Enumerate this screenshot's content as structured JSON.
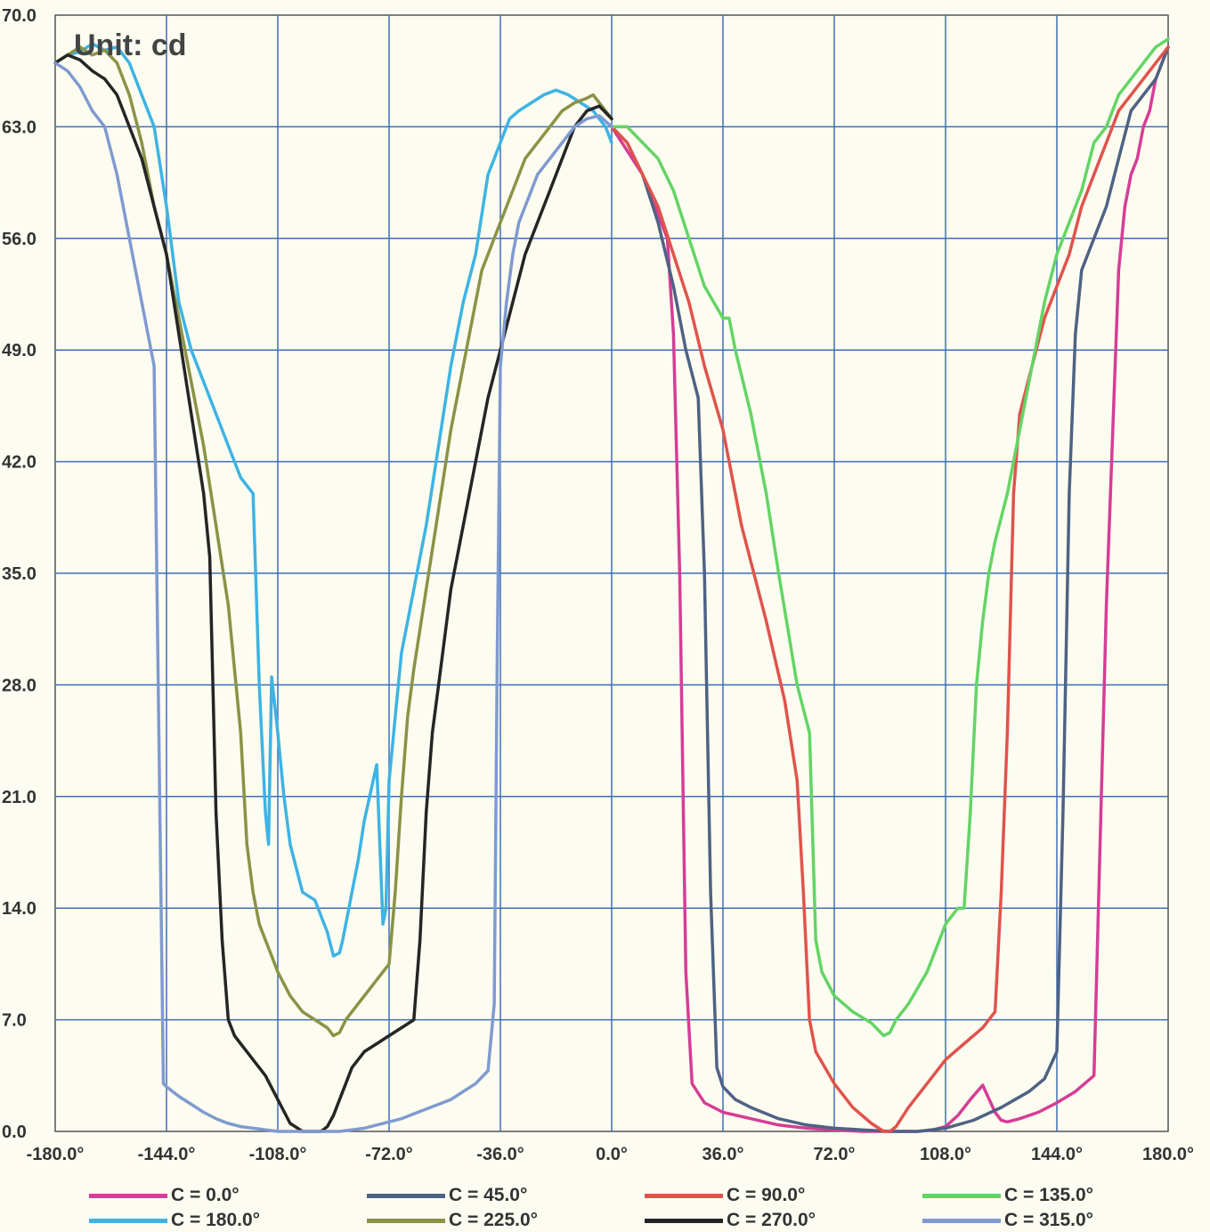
{
  "chart_data": {
    "type": "line",
    "unit_label": "Unit: cd",
    "xlim": [
      -180,
      180
    ],
    "ylim": [
      0,
      70
    ],
    "x_ticks": [
      "-180.0°",
      "-144.0°",
      "-108.0°",
      "-72.0°",
      "-36.0°",
      "0.0°",
      "36.0°",
      "72.0°",
      "108.0°",
      "144.0°",
      "180.0°"
    ],
    "y_ticks": [
      "0.0",
      "7.0",
      "14.0",
      "21.0",
      "28.0",
      "35.0",
      "42.0",
      "49.0",
      "56.0",
      "63.0",
      "70.0"
    ],
    "grid": true,
    "legend_position": "bottom",
    "series": [
      {
        "name": "C = 0.0°",
        "color": "#d63d96",
        "x": [
          0,
          10,
          18,
          20,
          22,
          24,
          26,
          30,
          36,
          45,
          54,
          63,
          72,
          81,
          90,
          99,
          104,
          108,
          112,
          116,
          120,
          124,
          126,
          128,
          130,
          132,
          138,
          144,
          150,
          156,
          160,
          164,
          166,
          168,
          170,
          172,
          174,
          176,
          178,
          180
        ],
        "y": [
          63,
          60,
          56,
          50,
          35,
          10,
          3,
          1.8,
          1.2,
          0.8,
          0.4,
          0.2,
          0.1,
          0,
          0,
          0,
          0.1,
          0.3,
          1,
          2,
          2.9,
          1.2,
          0.7,
          0.6,
          0.7,
          0.8,
          1.2,
          1.8,
          2.5,
          3.5,
          33,
          54,
          58,
          60,
          61,
          63,
          64,
          66,
          67,
          68
        ]
      },
      {
        "name": "C = 45.0°",
        "color": "#4e6284",
        "x": [
          0,
          5,
          10,
          15,
          20,
          24,
          28,
          30,
          32,
          34,
          36,
          40,
          45,
          54,
          63,
          72,
          81,
          90,
          99,
          108,
          117,
          126,
          135,
          140,
          144,
          146,
          148,
          150,
          152,
          156,
          160,
          164,
          168,
          172,
          176,
          180
        ],
        "y": [
          63,
          62,
          60,
          57,
          53,
          49,
          46,
          35,
          15,
          4,
          2.8,
          2,
          1.5,
          0.8,
          0.4,
          0.2,
          0.1,
          0,
          0,
          0.2,
          0.7,
          1.5,
          2.5,
          3.3,
          5,
          20,
          40,
          50,
          54,
          56,
          58,
          61,
          64,
          65,
          66,
          68
        ]
      },
      {
        "name": "C = 90.0°",
        "color": "#e0534d",
        "x": [
          0,
          5,
          10,
          15,
          20,
          25,
          30,
          36,
          42,
          50,
          56,
          60,
          62,
          64,
          66,
          72,
          78,
          84,
          88,
          90,
          92,
          96,
          102,
          108,
          114,
          120,
          124,
          126,
          128,
          130,
          132,
          136,
          140,
          144,
          148,
          152,
          156,
          160,
          164,
          168,
          172,
          176,
          180
        ],
        "y": [
          63,
          62,
          60,
          58,
          55,
          52,
          48,
          44,
          38,
          32,
          27,
          22,
          15,
          7,
          5,
          3,
          1.5,
          0.5,
          0,
          0,
          0.3,
          1.5,
          3,
          4.5,
          5.5,
          6.5,
          7.5,
          15,
          25,
          40,
          45,
          48,
          51,
          53,
          55,
          58,
          60,
          62,
          64,
          65,
          66,
          67,
          68
        ]
      },
      {
        "name": "C = 135.0°",
        "color": "#64d466",
        "x": [
          0,
          5,
          10,
          15,
          20,
          25,
          30,
          36,
          38,
          40,
          45,
          50,
          54,
          60,
          64,
          66,
          68,
          72,
          78,
          84,
          88,
          90,
          92,
          96,
          102,
          106,
          108,
          112,
          114,
          116,
          118,
          120,
          122,
          124,
          128,
          132,
          136,
          140,
          144,
          148,
          152,
          156,
          160,
          164,
          168,
          172,
          176,
          180
        ],
        "y": [
          63,
          63,
          62,
          61,
          59,
          56,
          53,
          51,
          51,
          49,
          45,
          40,
          35,
          28,
          25,
          12,
          10,
          8.5,
          7.5,
          6.8,
          6,
          6.2,
          7,
          8,
          10,
          12,
          13,
          14,
          14,
          20,
          28,
          32,
          35,
          37,
          40,
          44,
          48,
          52,
          55,
          57,
          59,
          62,
          63,
          65,
          66,
          67,
          68,
          68.5
        ]
      },
      {
        "name": "C = 180.0°",
        "color": "#3eb3e4",
        "x": [
          -180,
          -176,
          -172,
          -168,
          -164,
          -160,
          -156,
          -152,
          -148,
          -144,
          -140,
          -136,
          -132,
          -128,
          -124,
          -120,
          -116,
          -114,
          -112,
          -111,
          -110,
          -108,
          -106,
          -104,
          -100,
          -96,
          -92,
          -90,
          -88,
          -87,
          -86,
          -84,
          -82,
          -80,
          -76,
          -74,
          -73,
          -72,
          -71,
          -70,
          -68,
          -64,
          -60,
          -56,
          -52,
          -48,
          -44,
          -40,
          -38,
          -36,
          -33,
          -30,
          -26,
          -22,
          -18,
          -14,
          -10,
          -6,
          -4,
          -2,
          0
        ],
        "y": [
          67,
          67.5,
          67.7,
          68.2,
          67.8,
          68,
          67,
          65,
          63,
          58,
          52,
          49,
          47,
          45,
          43,
          41,
          40,
          28,
          20,
          18,
          28.5,
          25,
          21,
          18,
          15,
          14.5,
          12.5,
          11,
          11.2,
          12,
          13,
          15,
          17,
          19.5,
          23,
          13,
          14,
          22,
          24,
          26,
          30,
          34,
          38,
          43,
          48,
          52,
          55,
          60,
          61,
          62,
          63.5,
          64,
          64.5,
          65,
          65.3,
          65,
          64.5,
          64,
          63.5,
          63,
          62
        ]
      },
      {
        "name": "C = 225.0°",
        "color": "#8a9346",
        "x": [
          -180,
          -176,
          -172,
          -168,
          -164,
          -160,
          -156,
          -152,
          -148,
          -144,
          -140,
          -136,
          -132,
          -128,
          -124,
          -120,
          -118,
          -116,
          -114,
          -112,
          -110,
          -108,
          -104,
          -100,
          -96,
          -92,
          -90,
          -88,
          -86,
          -84,
          -80,
          -76,
          -72,
          -70,
          -68,
          -66,
          -64,
          -60,
          -56,
          -52,
          -48,
          -44,
          -42,
          -40,
          -36,
          -32,
          -28,
          -24,
          -20,
          -16,
          -12,
          -8,
          -6,
          -4,
          -2,
          0
        ],
        "y": [
          67,
          67.5,
          68,
          67.5,
          67.8,
          67,
          65,
          62,
          58,
          55,
          51,
          47,
          43,
          38,
          33,
          25,
          18,
          15,
          13,
          12,
          11,
          10,
          8.5,
          7.5,
          7,
          6.5,
          6,
          6.2,
          7,
          7.5,
          8.5,
          9.5,
          10.5,
          15,
          21,
          26,
          29,
          34,
          39,
          44,
          48,
          52,
          54,
          55,
          57,
          59,
          61,
          62,
          63,
          64,
          64.5,
          64.8,
          65,
          64.5,
          64,
          63.5
        ]
      },
      {
        "name": "C = 270.0°",
        "color": "#252525",
        "x": [
          -180,
          -176,
          -172,
          -168,
          -164,
          -160,
          -156,
          -152,
          -148,
          -144,
          -140,
          -136,
          -132,
          -130,
          -128,
          -126,
          -124,
          -122,
          -120,
          -118,
          -116,
          -112,
          -108,
          -104,
          -100,
          -96,
          -94,
          -92,
          -90,
          -88,
          -86,
          -84,
          -80,
          -76,
          -72,
          -68,
          -64,
          -62,
          -60,
          -58,
          -56,
          -54,
          -52,
          -48,
          -44,
          -40,
          -36,
          -32,
          -28,
          -24,
          -20,
          -16,
          -12,
          -8,
          -4,
          0
        ],
        "y": [
          67,
          67.5,
          67.2,
          66.5,
          66,
          65,
          63,
          61,
          58,
          55,
          50,
          45,
          40,
          36,
          20,
          12,
          7,
          6,
          5.5,
          5,
          4.5,
          3.5,
          2,
          0.5,
          0,
          0,
          0,
          0.3,
          1,
          2,
          3,
          4,
          5,
          5.5,
          6,
          6.5,
          7,
          12,
          20,
          25,
          28,
          31,
          34,
          38,
          42,
          46,
          49,
          52,
          55,
          57,
          59,
          61,
          63,
          64,
          64.3,
          63.5
        ]
      },
      {
        "name": "C = 315.0°",
        "color": "#7f9ad0",
        "x": [
          -180,
          -176,
          -172,
          -168,
          -164,
          -160,
          -156,
          -152,
          -148,
          -145,
          -144,
          -140,
          -136,
          -132,
          -128,
          -124,
          -120,
          -116,
          -112,
          -108,
          -104,
          -100,
          -96,
          -92,
          -90,
          -88,
          -84,
          -80,
          -76,
          -72,
          -68,
          -64,
          -60,
          -56,
          -52,
          -48,
          -44,
          -40,
          -38,
          -37,
          -36,
          -34,
          -32,
          -30,
          -28,
          -24,
          -20,
          -16,
          -12,
          -8,
          -4,
          0
        ],
        "y": [
          67,
          66.5,
          65.5,
          64,
          63,
          60,
          56,
          52,
          48,
          3,
          2.8,
          2.2,
          1.7,
          1.2,
          0.8,
          0.5,
          0.3,
          0.2,
          0.1,
          0,
          0,
          0,
          0,
          0,
          0,
          0,
          0.1,
          0.2,
          0.4,
          0.6,
          0.8,
          1.1,
          1.4,
          1.7,
          2,
          2.5,
          3,
          3.8,
          8,
          30,
          48,
          52,
          55,
          57,
          58,
          60,
          61,
          62,
          63,
          63.5,
          63.7,
          63
        ]
      }
    ]
  }
}
